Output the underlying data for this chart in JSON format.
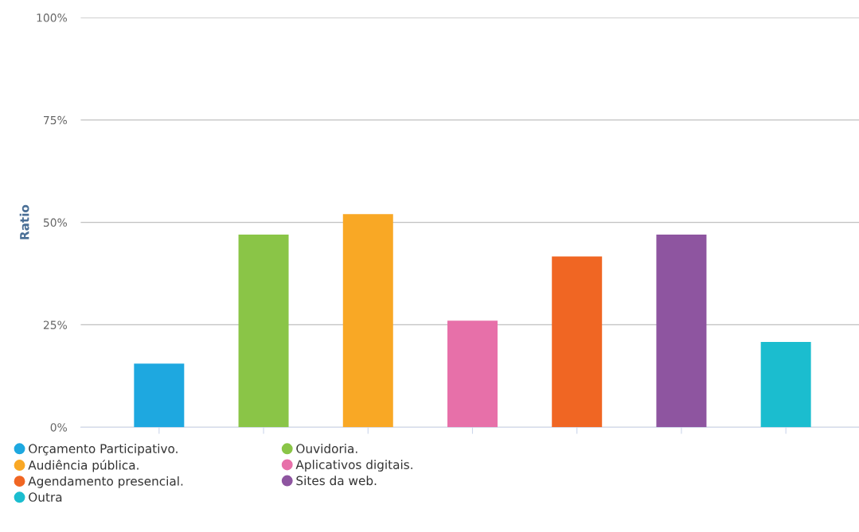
{
  "chart_data": {
    "type": "bar",
    "ylabel": "Ratio",
    "categories": [
      null,
      null,
      null,
      null,
      null,
      null,
      null
    ],
    "series": [
      {
        "name": "Orçamento Participativo.",
        "color": "#1ea8e0",
        "values": [
          15.5,
          null,
          null,
          null,
          null,
          null,
          null
        ]
      },
      {
        "name": "Ouvidoria.",
        "color": "#8ac547",
        "values": [
          null,
          47,
          null,
          null,
          null,
          null,
          null
        ]
      },
      {
        "name": "Audiência pública.",
        "color": "#f9a825",
        "values": [
          null,
          null,
          52,
          null,
          null,
          null,
          null
        ]
      },
      {
        "name": "Aplicativos digitais.",
        "color": "#e770a9",
        "values": [
          null,
          null,
          null,
          26,
          null,
          null,
          null
        ]
      },
      {
        "name": "Agendamento presencial.",
        "color": "#f06623",
        "values": [
          null,
          null,
          null,
          null,
          41.7,
          null,
          null
        ]
      },
      {
        "name": "Sites da web.",
        "color": "#8e55a0",
        "values": [
          null,
          null,
          null,
          null,
          null,
          47,
          null
        ]
      },
      {
        "name": "Outra",
        "color": "#1bbdcf",
        "values": [
          null,
          null,
          null,
          null,
          null,
          null,
          20.8
        ]
      }
    ],
    "ylim": [
      0,
      100
    ],
    "yticks": [
      {
        "value": 0,
        "label": "0%"
      },
      {
        "value": 25,
        "label": "25%"
      },
      {
        "value": 50,
        "label": "50%"
      },
      {
        "value": 75,
        "label": "75%"
      },
      {
        "value": 100,
        "label": "100%"
      }
    ],
    "grid": "y",
    "legend": "bottom left",
    "tick_labels": "y"
  }
}
